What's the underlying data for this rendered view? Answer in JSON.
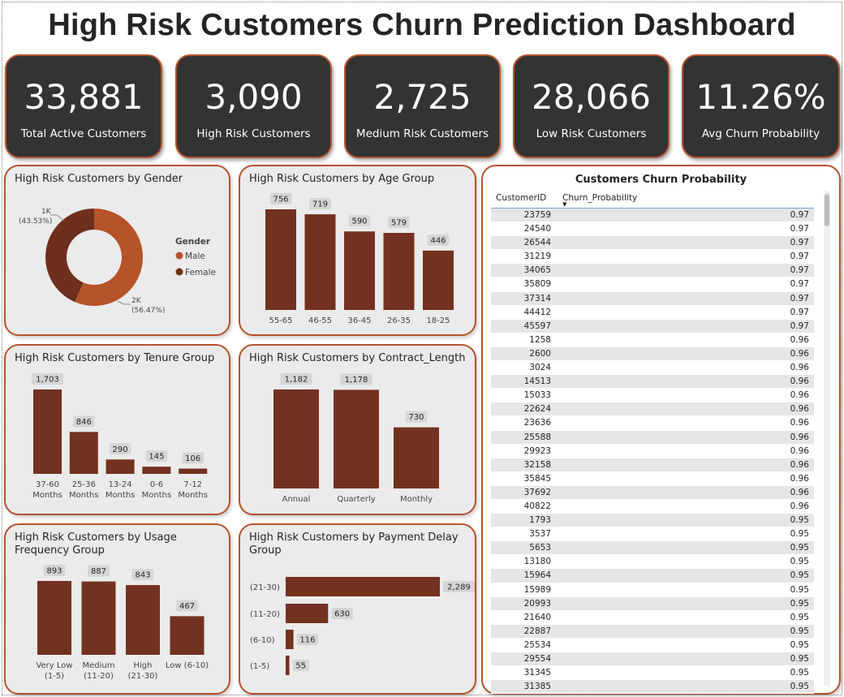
{
  "title": "High Risk Customers Churn Prediction Dashboard",
  "colors": {
    "accent": "#b5532a",
    "bar": "#73321f",
    "male": "#b5532a",
    "female": "#6e2f1c",
    "kpi_bg": "#333333"
  },
  "kpis": [
    {
      "value": "33,881",
      "label": "Total Active Customers"
    },
    {
      "value": "3,090",
      "label": "High Risk Customers"
    },
    {
      "value": "2,725",
      "label": "Medium Risk Customers"
    },
    {
      "value": "28,066",
      "label": "Low Risk Customers"
    },
    {
      "value": "11.26%",
      "label": "Avg Churn Probability"
    }
  ],
  "panels": {
    "gender": "High Risk Customers by Gender",
    "age": "High Risk Customers by Age Group",
    "tenure": "High Risk Customers by Tenure Group",
    "contract": "High Risk Customers by Contract_Length",
    "usage": "High Risk Customers by Usage Frequency Group",
    "payment": "High Risk Customers by Payment Delay Group"
  },
  "chart_data": [
    {
      "id": "gender",
      "type": "pie",
      "legend_title": "Gender",
      "slices": [
        {
          "name": "Male",
          "value": 56.47,
          "label": "2K",
          "pct": "(56.47%)"
        },
        {
          "name": "Female",
          "value": 43.53,
          "label": "1K",
          "pct": "(43.53%)"
        }
      ]
    },
    {
      "id": "age",
      "type": "bar",
      "categories": [
        "55-65",
        "46-55",
        "36-45",
        "26-35",
        "18-25"
      ],
      "values": [
        756,
        719,
        590,
        579,
        446
      ],
      "labels": [
        "756",
        "719",
        "590",
        "579",
        "446"
      ],
      "ylim": [
        0,
        756
      ]
    },
    {
      "id": "tenure",
      "type": "bar",
      "categories": [
        [
          "37-60",
          "Months"
        ],
        [
          "25-36",
          "Months"
        ],
        [
          "13-24",
          "Months"
        ],
        [
          "0-6",
          "Months"
        ],
        [
          "7-12",
          "Months"
        ]
      ],
      "values": [
        1703,
        846,
        290,
        145,
        106
      ],
      "labels": [
        "1,703",
        "846",
        "290",
        "145",
        "106"
      ],
      "ylim": [
        0,
        1703
      ]
    },
    {
      "id": "contract",
      "type": "bar",
      "categories": [
        [
          "Annual"
        ],
        [
          "Quarterly"
        ],
        [
          "Monthly"
        ]
      ],
      "values": [
        1182,
        1178,
        730
      ],
      "labels": [
        "1,182",
        "1,178",
        "730"
      ],
      "ylim": [
        0,
        1182
      ]
    },
    {
      "id": "usage",
      "type": "bar",
      "categories": [
        [
          "Very Low",
          "(1-5)"
        ],
        [
          "Medium",
          "(11-20)"
        ],
        [
          "High",
          "(21-30)"
        ],
        [
          "Low (6-10)"
        ]
      ],
      "values": [
        893,
        887,
        843,
        467
      ],
      "labels": [
        "893",
        "887",
        "843",
        "467"
      ],
      "ylim": [
        0,
        893
      ]
    },
    {
      "id": "payment",
      "type": "bar",
      "orientation": "horizontal",
      "categories": [
        "(21-30)",
        "(11-20)",
        "(6-10)",
        "(1-5)"
      ],
      "values": [
        2289,
        630,
        116,
        55
      ],
      "labels": [
        "2,289",
        "630",
        "116",
        "55"
      ],
      "xlim": [
        0,
        2289
      ]
    }
  ],
  "table": {
    "title": "Customers Churn Probability",
    "columns": [
      "CustomerID",
      "Churn_Probability"
    ],
    "rows": [
      [
        "23759",
        "0.97"
      ],
      [
        "24540",
        "0.97"
      ],
      [
        "26544",
        "0.97"
      ],
      [
        "31219",
        "0.97"
      ],
      [
        "34065",
        "0.97"
      ],
      [
        "35809",
        "0.97"
      ],
      [
        "37314",
        "0.97"
      ],
      [
        "44412",
        "0.97"
      ],
      [
        "45597",
        "0.97"
      ],
      [
        "1258",
        "0.96"
      ],
      [
        "2600",
        "0.96"
      ],
      [
        "3024",
        "0.96"
      ],
      [
        "14513",
        "0.96"
      ],
      [
        "15033",
        "0.96"
      ],
      [
        "22624",
        "0.96"
      ],
      [
        "23636",
        "0.96"
      ],
      [
        "25588",
        "0.96"
      ],
      [
        "29923",
        "0.96"
      ],
      [
        "32158",
        "0.96"
      ],
      [
        "35845",
        "0.96"
      ],
      [
        "37692",
        "0.96"
      ],
      [
        "40822",
        "0.96"
      ],
      [
        "1793",
        "0.95"
      ],
      [
        "3537",
        "0.95"
      ],
      [
        "5653",
        "0.95"
      ],
      [
        "13180",
        "0.95"
      ],
      [
        "15964",
        "0.95"
      ],
      [
        "15989",
        "0.95"
      ],
      [
        "20993",
        "0.95"
      ],
      [
        "21640",
        "0.95"
      ],
      [
        "22887",
        "0.95"
      ],
      [
        "25534",
        "0.95"
      ],
      [
        "29554",
        "0.95"
      ],
      [
        "31345",
        "0.95"
      ],
      [
        "31385",
        "0.95"
      ]
    ]
  }
}
